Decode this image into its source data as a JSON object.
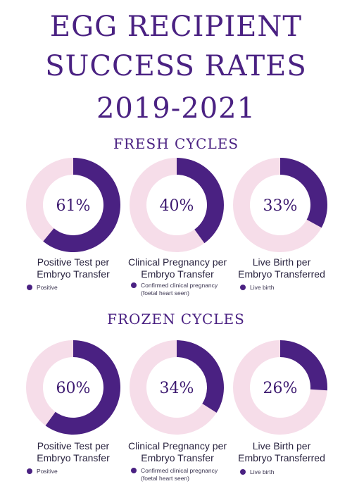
{
  "title_lines": [
    "EGG RECIPIENT",
    "SUCCESS RATES",
    "2019-2021"
  ],
  "colors": {
    "primary": "#4a2182",
    "track": "#f6dde9",
    "background": "#ffffff"
  },
  "sections": [
    {
      "heading": "FRESH CYCLES",
      "items": [
        {
          "label_line1": "Positive Test per",
          "label_line2": "Embryo Transfer",
          "legend": "Positive",
          "legend_line2": ""
        },
        {
          "label_line1": "Clinical Pregnancy per",
          "label_line2": "Embryo Transfer",
          "legend": "Confirmed clinical pregnancy",
          "legend_line2": "(foetal heart seen)"
        },
        {
          "label_line1": "Live Birth per",
          "label_line2": "Embryo Transferred",
          "legend": "Live birth",
          "legend_line2": ""
        }
      ]
    },
    {
      "heading": "FROZEN CYCLES",
      "items": [
        {
          "label_line1": "Positive Test per",
          "label_line2": "Embryo Transfer",
          "legend": "Positive",
          "legend_line2": ""
        },
        {
          "label_line1": "Clinical Pregnancy per",
          "label_line2": "Embryo Transfer",
          "legend": "Confirmed clinical pregnancy",
          "legend_line2": "(foetal heart seen)"
        },
        {
          "label_line1": "Live Birth per",
          "label_line2": "Embryo Transferred",
          "legend": "Live birth",
          "legend_line2": ""
        }
      ]
    }
  ],
  "chart_data": [
    {
      "type": "pie",
      "section": "FRESH CYCLES",
      "label": "Positive Test per Embryo Transfer",
      "value": 61,
      "display": "61%",
      "legend": "Positive"
    },
    {
      "type": "pie",
      "section": "FRESH CYCLES",
      "label": "Clinical Pregnancy per Embryo Transfer",
      "value": 40,
      "display": "40%",
      "legend": "Confirmed clinical pregnancy (foetal heart seen)"
    },
    {
      "type": "pie",
      "section": "FRESH CYCLES",
      "label": "Live Birth per Embryo Transferred",
      "value": 33,
      "display": "33%",
      "legend": "Live birth"
    },
    {
      "type": "pie",
      "section": "FROZEN CYCLES",
      "label": "Positive Test per Embryo Transfer",
      "value": 60,
      "display": "60%",
      "legend": "Positive"
    },
    {
      "type": "pie",
      "section": "FROZEN CYCLES",
      "label": "Clinical Pregnancy per Embryo Transfer",
      "value": 34,
      "display": "34%",
      "legend": "Confirmed clinical pregnancy (foetal heart seen)"
    },
    {
      "type": "pie",
      "section": "FROZEN CYCLES",
      "label": "Live Birth per Embryo Transferred",
      "value": 26,
      "display": "26%",
      "legend": "Live birth"
    }
  ]
}
